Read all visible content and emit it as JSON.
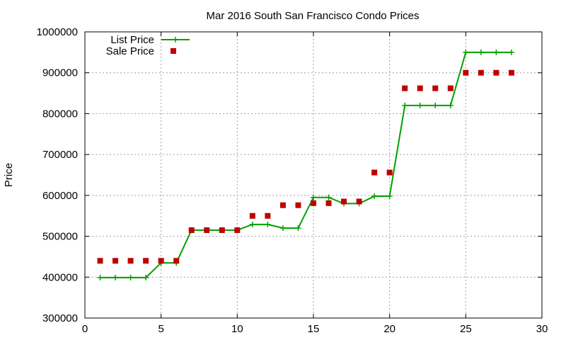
{
  "chart_data": {
    "type": "line",
    "title": "Mar 2016 South San Francisco Condo Prices",
    "xlabel": "",
    "ylabel": "Price",
    "xlim": [
      0,
      30
    ],
    "ylim": [
      300000,
      1000000
    ],
    "xticks": [
      0,
      5,
      10,
      15,
      20,
      25,
      30
    ],
    "yticks": [
      300000,
      400000,
      500000,
      600000,
      700000,
      800000,
      900000,
      1000000
    ],
    "grid": true,
    "legend_position": "top-left",
    "series": [
      {
        "name": "List Price",
        "style": "line-with-plus-markers",
        "color": "#00a000",
        "x": [
          1,
          2,
          3,
          4,
          5,
          6,
          7,
          8,
          9,
          10,
          11,
          12,
          13,
          14,
          15,
          16,
          17,
          18,
          19,
          20,
          21,
          22,
          23,
          24,
          25,
          26,
          27,
          28
        ],
        "y": [
          399000,
          399000,
          399000,
          399000,
          435000,
          435000,
          515000,
          515000,
          515000,
          515000,
          529000,
          529000,
          520000,
          520000,
          595000,
          595000,
          580000,
          580000,
          598000,
          598000,
          820000,
          820000,
          820000,
          820000,
          950000,
          950000,
          950000,
          950000
        ]
      },
      {
        "name": "Sale Price",
        "style": "square-markers",
        "color": "#c00000",
        "x": [
          1,
          2,
          3,
          4,
          5,
          6,
          7,
          8,
          9,
          10,
          11,
          12,
          13,
          14,
          15,
          16,
          17,
          18,
          19,
          20,
          21,
          22,
          23,
          24,
          25,
          26,
          27,
          28
        ],
        "y": [
          440000,
          440000,
          440000,
          440000,
          440000,
          440000,
          515000,
          515000,
          515000,
          515000,
          550000,
          550000,
          576000,
          576000,
          581000,
          581000,
          585000,
          585000,
          656000,
          656000,
          862000,
          862000,
          862000,
          862000,
          900000,
          900000,
          900000,
          900000
        ]
      }
    ]
  }
}
